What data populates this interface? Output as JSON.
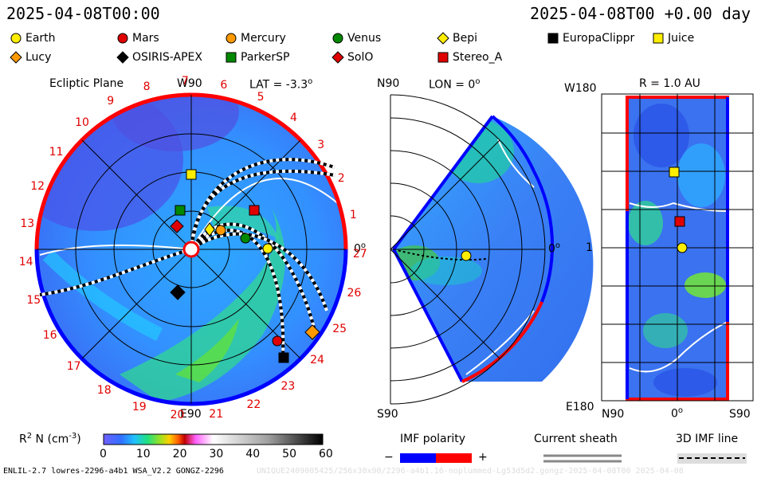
{
  "header": {
    "left_date": "2025-04-08T00:00",
    "right_date": "2025-04-08T00 +0.00 day"
  },
  "legend": [
    {
      "name": "Earth",
      "shape": "circle",
      "color": "#ffee00"
    },
    {
      "name": "Mars",
      "shape": "circle",
      "color": "#e00000"
    },
    {
      "name": "Mercury",
      "shape": "circle",
      "color": "#ff9900"
    },
    {
      "name": "Venus",
      "shape": "circle",
      "color": "#008800"
    },
    {
      "name": "Bepi",
      "shape": "diamond",
      "color": "#ffee00"
    },
    {
      "name": "EuropaClippr",
      "shape": "square",
      "color": "#000000"
    },
    {
      "name": "Juice",
      "shape": "square",
      "color": "#ffee00"
    },
    {
      "name": "Lucy",
      "shape": "diamond",
      "color": "#ff9900"
    },
    {
      "name": "OSIRIS-APEX",
      "shape": "diamond",
      "color": "#000000"
    },
    {
      "name": "ParkerSP",
      "shape": "square",
      "color": "#008800"
    },
    {
      "name": "SolO",
      "shape": "diamond",
      "color": "#e00000"
    },
    {
      "name": "Stereo_A",
      "shape": "square",
      "color": "#e00000"
    }
  ],
  "panel1": {
    "title": "Ecliptic Plane",
    "w90": "W90",
    "lat": "LAT = -3.3",
    "deg": "o",
    "e90": "E90",
    "zero": "0",
    "carrington": [
      "1",
      "2",
      "3",
      "4",
      "5",
      "6",
      "7",
      "8",
      "9",
      "10",
      "11",
      "12",
      "13",
      "14",
      "15",
      "16",
      "17",
      "18",
      "19",
      "20",
      "21",
      "22",
      "23",
      "24",
      "25",
      "26",
      "27"
    ]
  },
  "panel2": {
    "n90": "N90",
    "lon": "LON = 0",
    "deg": "o",
    "s90": "S90",
    "zero": "0"
  },
  "panel3": {
    "w180": "W180",
    "r": "R = 1.0 AU",
    "one": "1",
    "e180": "E180",
    "n90": "N90",
    "zero": "0",
    "deg": "o",
    "s90": "S90"
  },
  "colorbar": {
    "label": "R",
    "sup": "2",
    "label2": " N (cm",
    "sup2": "-3",
    "label3": ")",
    "ticks": [
      "0",
      "10",
      "20",
      "30",
      "40",
      "50",
      "60"
    ]
  },
  "imf": {
    "title": "IMF polarity",
    "minus": "−",
    "plus": "+",
    "neg_color": "#0000ff",
    "pos_color": "#ff0000"
  },
  "sheath": {
    "title": "Current sheath"
  },
  "imf3d": {
    "title": "3D IMF line"
  },
  "footer": {
    "left": "ENLIL-2.7 lowres-2296-a4b1 WSA_V2.2 GONGZ-2296",
    "right": "UNIQUE2409005425/256x30x90/2296-a4b1.16-noplummed-Lg53d5d2.gongz-2025-04-08T00    2025-04-08"
  },
  "chart_data": [
    {
      "type": "heatmap",
      "title": "Ecliptic Plane",
      "subtitle": "LAT = -3.3",
      "bodies": [
        {
          "name": "Earth"
        },
        {
          "name": "Mars"
        },
        {
          "name": "Mercury"
        },
        {
          "name": "Venus"
        },
        {
          "name": "Bepi"
        },
        {
          "name": "EuropaClippr"
        },
        {
          "name": "Juice"
        },
        {
          "name": "Lucy"
        },
        {
          "name": "OSIRIS-APEX"
        },
        {
          "name": "ParkerSP"
        },
        {
          "name": "SolO"
        },
        {
          "name": "Stereo_A"
        }
      ],
      "colorscale": {
        "label": "R² N (cm⁻³)",
        "range": [
          0,
          60
        ],
        "ticks": [
          0,
          10,
          20,
          30,
          40,
          50,
          60
        ]
      }
    },
    {
      "type": "heatmap",
      "title": "LON = 0",
      "yrange": [
        "N90",
        "S90"
      ]
    },
    {
      "type": "heatmap",
      "title": "R = 1.0 AU",
      "xrange": [
        "N90",
        "S90"
      ],
      "yrange": [
        "W180",
        "E180"
      ]
    }
  ]
}
